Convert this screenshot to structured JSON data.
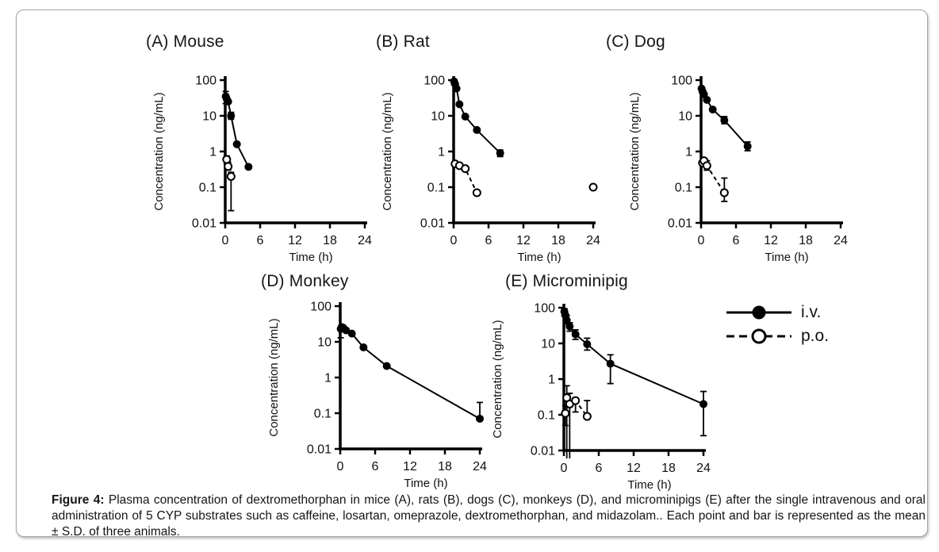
{
  "figure": {
    "caption_label": "Figure 4:",
    "caption_text": " Plasma concentration of dextromethorphan in mice (A), rats (B), dogs (C), monkeys (D), and microminipigs (E) after the single intravenous and oral administration of 5 CYP substrates such as caffeine, losartan, omeprazole, dextromethorphan, and midazolam..  Each point and bar is represented as the mean ± S.D. of three animals."
  },
  "chart_data": {
    "type": "line",
    "log_y": true,
    "xlim": [
      0,
      24
    ],
    "ylim": [
      0.01,
      100
    ],
    "xticks": [
      0,
      6,
      12,
      18,
      24
    ],
    "yticks": [
      100,
      10,
      1,
      0.1,
      0.01
    ],
    "xlabel": "Time (h)",
    "ylabel": "Concentration (ng/mL)",
    "grid": false,
    "legend_position": "right of panel E",
    "legend": [
      {
        "name": "i.v.",
        "marker": "filled",
        "line": "solid"
      },
      {
        "name": "p.o.",
        "marker": "open",
        "line": "dashed"
      }
    ],
    "panels": [
      {
        "id": "A",
        "title": "(A) Mouse",
        "series": [
          {
            "name": "i.v.",
            "marker": "filled",
            "line": "solid",
            "t": [
              0.083,
              0.25,
              0.5,
              1,
              2,
              4
            ],
            "v": [
              35,
              30,
              25,
              10,
              1.6,
              0.37
            ],
            "err_lo": [
              22,
              null,
              null,
              8,
              null,
              null
            ],
            "err_hi": [
              48,
              null,
              null,
              12.5,
              null,
              null
            ]
          },
          {
            "name": "p.o.",
            "marker": "open",
            "line": "dashed",
            "t": [
              0.25,
              0.5,
              1
            ],
            "v": [
              0.6,
              0.38,
              0.2
            ],
            "err_lo": [
              0.45,
              0.3,
              0.022
            ],
            "err_hi": [
              0.75,
              0.5,
              0.26
            ]
          }
        ]
      },
      {
        "id": "B",
        "title": "(B) Rat",
        "series": [
          {
            "name": "i.v.",
            "marker": "filled",
            "line": "solid",
            "t": [
              0.083,
              0.25,
              0.5,
              1,
              2,
              4,
              8
            ],
            "v": [
              92,
              78,
              58,
              21,
              9.5,
              4,
              0.9
            ],
            "err_lo": [
              75,
              null,
              null,
              null,
              null,
              null,
              0.72
            ],
            "err_hi": [
              100,
              null,
              null,
              null,
              null,
              null,
              1.1
            ]
          },
          {
            "name": "p.o.",
            "marker": "open",
            "line": "dashed",
            "t": [
              0.25,
              1,
              2,
              4,
              24
            ],
            "v": [
              0.45,
              0.4,
              0.33,
              0.07,
              0.1
            ],
            "err_lo": [
              null,
              null,
              null,
              null,
              null
            ],
            "err_hi": [
              null,
              null,
              null,
              null,
              null
            ]
          }
        ]
      },
      {
        "id": "C",
        "title": "(C) Dog",
        "series": [
          {
            "name": "i.v.",
            "marker": "filled",
            "line": "solid",
            "t": [
              0.083,
              0.25,
              0.5,
              1,
              2,
              4,
              8
            ],
            "v": [
              58,
              48,
              40,
              28,
              15,
              7.5,
              1.4
            ],
            "err_lo": [
              null,
              null,
              null,
              null,
              null,
              6,
              1.05
            ],
            "err_hi": [
              null,
              null,
              null,
              null,
              null,
              9.5,
              1.85
            ]
          },
          {
            "name": "p.o.",
            "marker": "open",
            "line": "dashed",
            "t": [
              0.25,
              0.5,
              1,
              4
            ],
            "v": [
              0.48,
              0.55,
              0.4,
              0.07
            ],
            "err_lo": [
              null,
              null,
              0.3,
              0.04
            ],
            "err_hi": [
              null,
              null,
              0.55,
              0.18
            ]
          }
        ]
      },
      {
        "id": "D",
        "title": "(D) Monkey",
        "series": [
          {
            "name": "i.v.",
            "marker": "filled",
            "line": "solid",
            "t": [
              0.083,
              0.25,
              0.5,
              1,
              2,
              4,
              8,
              24
            ],
            "v": [
              23,
              26,
              25,
              21,
              17,
              7,
              2.1,
              0.07
            ],
            "err_lo": [
              13,
              null,
              null,
              null,
              null,
              null,
              null,
              null
            ],
            "err_hi": [
              null,
              null,
              null,
              null,
              null,
              null,
              null,
              0.2
            ]
          }
        ]
      },
      {
        "id": "E",
        "title": "(E) Microminipig",
        "series": [
          {
            "name": "i.v.",
            "marker": "filled",
            "line": "solid",
            "t": [
              0.083,
              0.25,
              0.5,
              1,
              2,
              4,
              8,
              24
            ],
            "v": [
              78,
              62,
              45,
              30,
              18,
              9.5,
              2.7,
              0.2
            ],
            "err_lo": [
              60,
              null,
              35,
              22,
              13,
              6.5,
              0.75,
              0.026
            ],
            "err_hi": [
              95,
              null,
              60,
              38,
              24,
              14,
              4.8,
              0.45
            ]
          },
          {
            "name": "p.o.",
            "marker": "open",
            "line": "dashed",
            "t": [
              0.25,
              0.5,
              1,
              2,
              4
            ],
            "v": [
              0.11,
              0.3,
              0.2,
              0.25,
              0.09
            ],
            "err_lo": [
              0.05,
              0.004,
              0.004,
              0.12,
              null
            ],
            "err_hi": [
              0.18,
              0.65,
              0.4,
              0.3,
              0.25
            ]
          }
        ]
      }
    ]
  }
}
